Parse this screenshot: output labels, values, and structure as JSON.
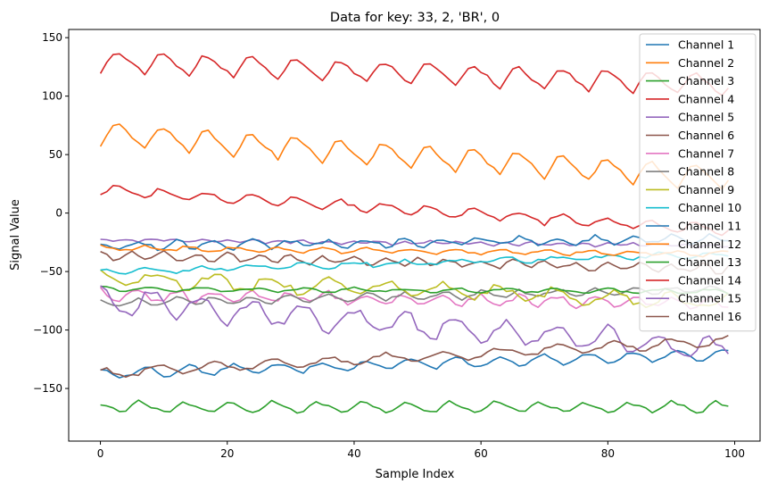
{
  "chart_data": {
    "type": "line",
    "title": "Data for key: 33, 2, 'BR', 0",
    "xlabel": "Sample Index",
    "ylabel": "Signal Value",
    "xlim": [
      -5,
      104
    ],
    "ylim": [
      -195,
      157
    ],
    "xticks": [
      0,
      20,
      40,
      60,
      80,
      100
    ],
    "yticks": [
      -150,
      -100,
      -50,
      0,
      50,
      100,
      150
    ],
    "grid": false,
    "legend_position": "top-right",
    "series": [
      {
        "name": "Channel 1",
        "color": "#1f77b4",
        "base": -137,
        "slope": 0.16,
        "amp": 4,
        "period": 7,
        "phase": 0.0,
        "noise": 1.5,
        "shape": "cos"
      },
      {
        "name": "Channel 2",
        "color": "#ff7f0e",
        "base": 68,
        "slope": -0.38,
        "amp": 11,
        "period": 7,
        "phase": 0.0,
        "noise": 1.5,
        "shape": "saw"
      },
      {
        "name": "Channel 3",
        "color": "#2ca02c",
        "base": -166,
        "slope": 0.0,
        "amp": 5,
        "period": 7,
        "phase": 1.5,
        "noise": 1.2,
        "shape": "saw"
      },
      {
        "name": "Channel 4",
        "color": "#d62728",
        "base": 130,
        "slope": -0.2,
        "amp": 10,
        "period": 7,
        "phase": 0.0,
        "noise": 1.5,
        "shape": "saw"
      },
      {
        "name": "Channel 5",
        "color": "#9467bd",
        "base": -23,
        "slope": -0.05,
        "amp": 1.2,
        "period": 4,
        "phase": 0.0,
        "noise": 1.0,
        "shape": "cos"
      },
      {
        "name": "Channel 6",
        "color": "#8c564b",
        "base": -36,
        "slope": -0.12,
        "amp": 3,
        "period": 5,
        "phase": 0.0,
        "noise": 2.0,
        "shape": "cos"
      },
      {
        "name": "Channel 7",
        "color": "#e377c2",
        "base": -70,
        "slope": -0.07,
        "amp": 4,
        "period": 6,
        "phase": 0.0,
        "noise": 2.5,
        "shape": "cos"
      },
      {
        "name": "Channel 8",
        "color": "#7f7f7f",
        "base": -77,
        "slope": 0.12,
        "amp": 3,
        "period": 6,
        "phase": 0.0,
        "noise": 1.5,
        "shape": "cos"
      },
      {
        "name": "Channel 9",
        "color": "#bcbd22",
        "base": -55,
        "slope": -0.22,
        "amp": 6,
        "period": 9,
        "phase": 0.0,
        "noise": 3.0,
        "shape": "cos"
      },
      {
        "name": "Channel 10",
        "color": "#17becf",
        "base": -50,
        "slope": 0.15,
        "amp": 2,
        "period": 8,
        "phase": 0.0,
        "noise": 1.5,
        "shape": "cos"
      },
      {
        "name": "Channel 11",
        "color": "#1f77b4",
        "base": -28,
        "slope": 0.06,
        "amp": 3,
        "period": 6,
        "phase": 0.0,
        "noise": 2.0,
        "shape": "cos"
      },
      {
        "name": "Channel 12",
        "color": "#ff7f0e",
        "base": -30,
        "slope": -0.05,
        "amp": 2,
        "period": 7,
        "phase": 0.0,
        "noise": 1.0,
        "shape": "cos"
      },
      {
        "name": "Channel 13",
        "color": "#2ca02c",
        "base": -65,
        "slope": -0.02,
        "amp": 1.5,
        "period": 8,
        "phase": 0.0,
        "noise": 1.0,
        "shape": "cos"
      },
      {
        "name": "Channel 14",
        "color": "#d62728",
        "base": 20,
        "slope": -0.35,
        "amp": 5,
        "period": 7,
        "phase": 0.0,
        "noise": 1.5,
        "shape": "saw"
      },
      {
        "name": "Channel 15",
        "color": "#9467bd",
        "base": -75,
        "slope": -0.42,
        "amp": 10,
        "period": 8,
        "phase": 0.0,
        "noise": 4.0,
        "shape": "cos"
      },
      {
        "name": "Channel 16",
        "color": "#8c564b",
        "base": -137,
        "slope": 0.28,
        "amp": 4,
        "period": 9,
        "phase": 0.0,
        "noise": 1.5,
        "shape": "cos"
      }
    ]
  }
}
